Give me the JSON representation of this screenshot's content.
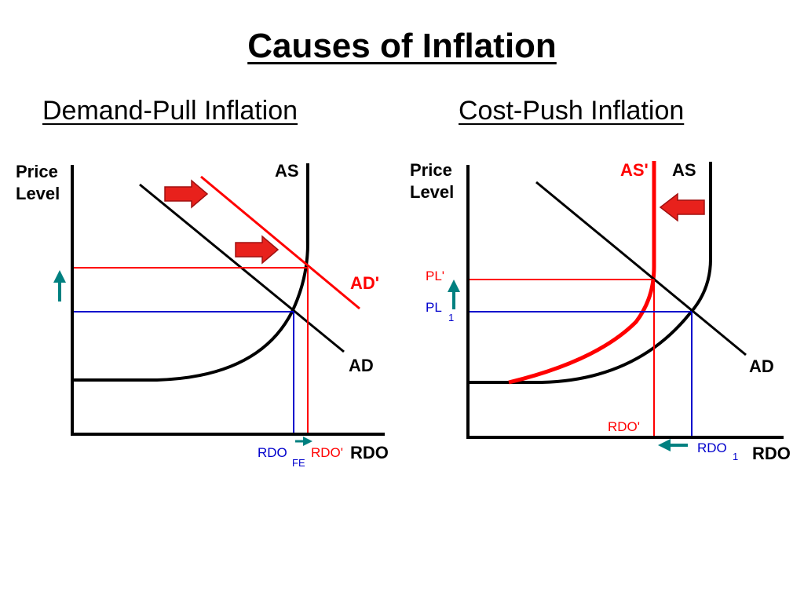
{
  "title": "Causes of Inflation",
  "left": {
    "heading": "Demand-Pull Inflation",
    "y_axis_line1": "Price",
    "y_axis_line2": "Level",
    "x_axis": "RDO",
    "as_label": "AS",
    "ad_label": "AD",
    "ad_shift_label": "AD'",
    "rdo_fe_main": "RDO",
    "rdo_fe_sub": "FE",
    "rdo_prime": "RDO'"
  },
  "right": {
    "heading": "Cost-Push Inflation",
    "y_axis_line1": "Price",
    "y_axis_line2": "Level",
    "x_axis": "RDO",
    "as_label": "AS",
    "as_shift_label": "AS'",
    "ad_label": "AD",
    "pl_prime": "PL'",
    "pl1_main": "PL",
    "pl1_sub": "1",
    "rdo_prime": "RDO'",
    "rdo1_main": "RDO",
    "rdo1_sub": "1"
  },
  "colors": {
    "axis": "#000000",
    "shifted_curve": "#ff0000",
    "original_level": "#0000cc",
    "arrow": "#008080",
    "red_arrow": "#e8211c"
  },
  "icons": [
    "red-right-arrow-icon",
    "red-left-arrow-icon",
    "teal-up-arrow-icon",
    "teal-right-arrow-icon",
    "teal-left-arrow-icon"
  ]
}
